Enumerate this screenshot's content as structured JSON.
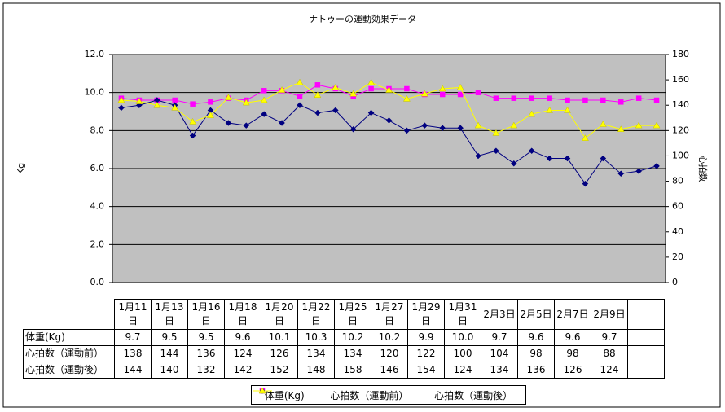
{
  "chart_data": {
    "type": "line",
    "title": "ナトゥーの運動効果データ",
    "y_label": "Kg",
    "y2_label": "心拍数",
    "categories": [
      null,
      null,
      null,
      null,
      null,
      null,
      null,
      null,
      null,
      null,
      null,
      null,
      null,
      null,
      null,
      null,
      null,
      null,
      null,
      null,
      null,
      null,
      null,
      null,
      null,
      null,
      null,
      null,
      null,
      null,
      null
    ],
    "ylim": [
      0,
      12
    ],
    "yticks": [
      {
        "value": 0,
        "label": "0.0"
      },
      {
        "value": 2,
        "label": "2.0"
      },
      {
        "value": 4,
        "label": "4.0"
      },
      {
        "value": 6,
        "label": "6.0"
      },
      {
        "value": 8,
        "label": "8.0"
      },
      {
        "value": 10,
        "label": "10.0"
      },
      {
        "value": 12,
        "label": "12.0"
      }
    ],
    "y2lim": [
      0,
      180
    ],
    "y2ticks": [
      0,
      20,
      40,
      60,
      80,
      100,
      120,
      140,
      160,
      180
    ],
    "grid": true,
    "legend": "bottom",
    "series": [
      {
        "name": "体重(Kg)",
        "color": "#ff00ff",
        "marker": "square",
        "axis": "y",
        "values": [
          9.7,
          9.6,
          9.6,
          9.6,
          9.4,
          9.5,
          9.7,
          9.6,
          10.1,
          10.1,
          9.8,
          10.4,
          10.2,
          9.8,
          10.2,
          10.2,
          10.2,
          9.9,
          9.9,
          9.9,
          10.0,
          9.7,
          9.7,
          9.7,
          9.7,
          9.6,
          9.6,
          9.6,
          9.5,
          9.7,
          9.6
        ]
      },
      {
        "name": "心拍数（運動前）",
        "color": "#000080",
        "marker": "diamond",
        "axis": "y2",
        "values": [
          138,
          140,
          144,
          140,
          116,
          136,
          126,
          124,
          133,
          126,
          140,
          134,
          136,
          121,
          134,
          128,
          120,
          124,
          122,
          122,
          100,
          104,
          94,
          104,
          98,
          98,
          78,
          98,
          86,
          88,
          92
        ]
      },
      {
        "name": "心拍数（運動後）",
        "color": "#ffff00",
        "marker": "triangle",
        "axis": "y2",
        "values": [
          144,
          143,
          140,
          138,
          127,
          132,
          146,
          142,
          144,
          152,
          158,
          148,
          154,
          149,
          158,
          152,
          145,
          149,
          153,
          154,
          124,
          118,
          124,
          133,
          136,
          136,
          114,
          125,
          121,
          124,
          124
        ]
      }
    ]
  },
  "table": {
    "columns": [
      "1月11日",
      "1月13日",
      "1月16日",
      "1月18日",
      "1月20日",
      "1月22日",
      "1月25日",
      "1月27日",
      "1月29日",
      "1月31日",
      "2月3日",
      "2月5日",
      "2月7日",
      "2月9日"
    ],
    "rows": [
      {
        "label": "体重(Kg)",
        "values": [
          "9.7",
          "9.5",
          "9.5",
          "9.6",
          "10.1",
          "10.3",
          "10.2",
          "10.2",
          "9.9",
          "10.0",
          "9.7",
          "9.6",
          "9.6",
          "9.7"
        ]
      },
      {
        "label": "心拍数（運動前）",
        "values": [
          "138",
          "144",
          "136",
          "124",
          "126",
          "134",
          "134",
          "120",
          "122",
          "100",
          "104",
          "98",
          "98",
          "88"
        ]
      },
      {
        "label": "心拍数（運動後）",
        "values": [
          "144",
          "140",
          "132",
          "142",
          "152",
          "148",
          "158",
          "146",
          "154",
          "124",
          "134",
          "136",
          "126",
          "124"
        ]
      }
    ]
  }
}
